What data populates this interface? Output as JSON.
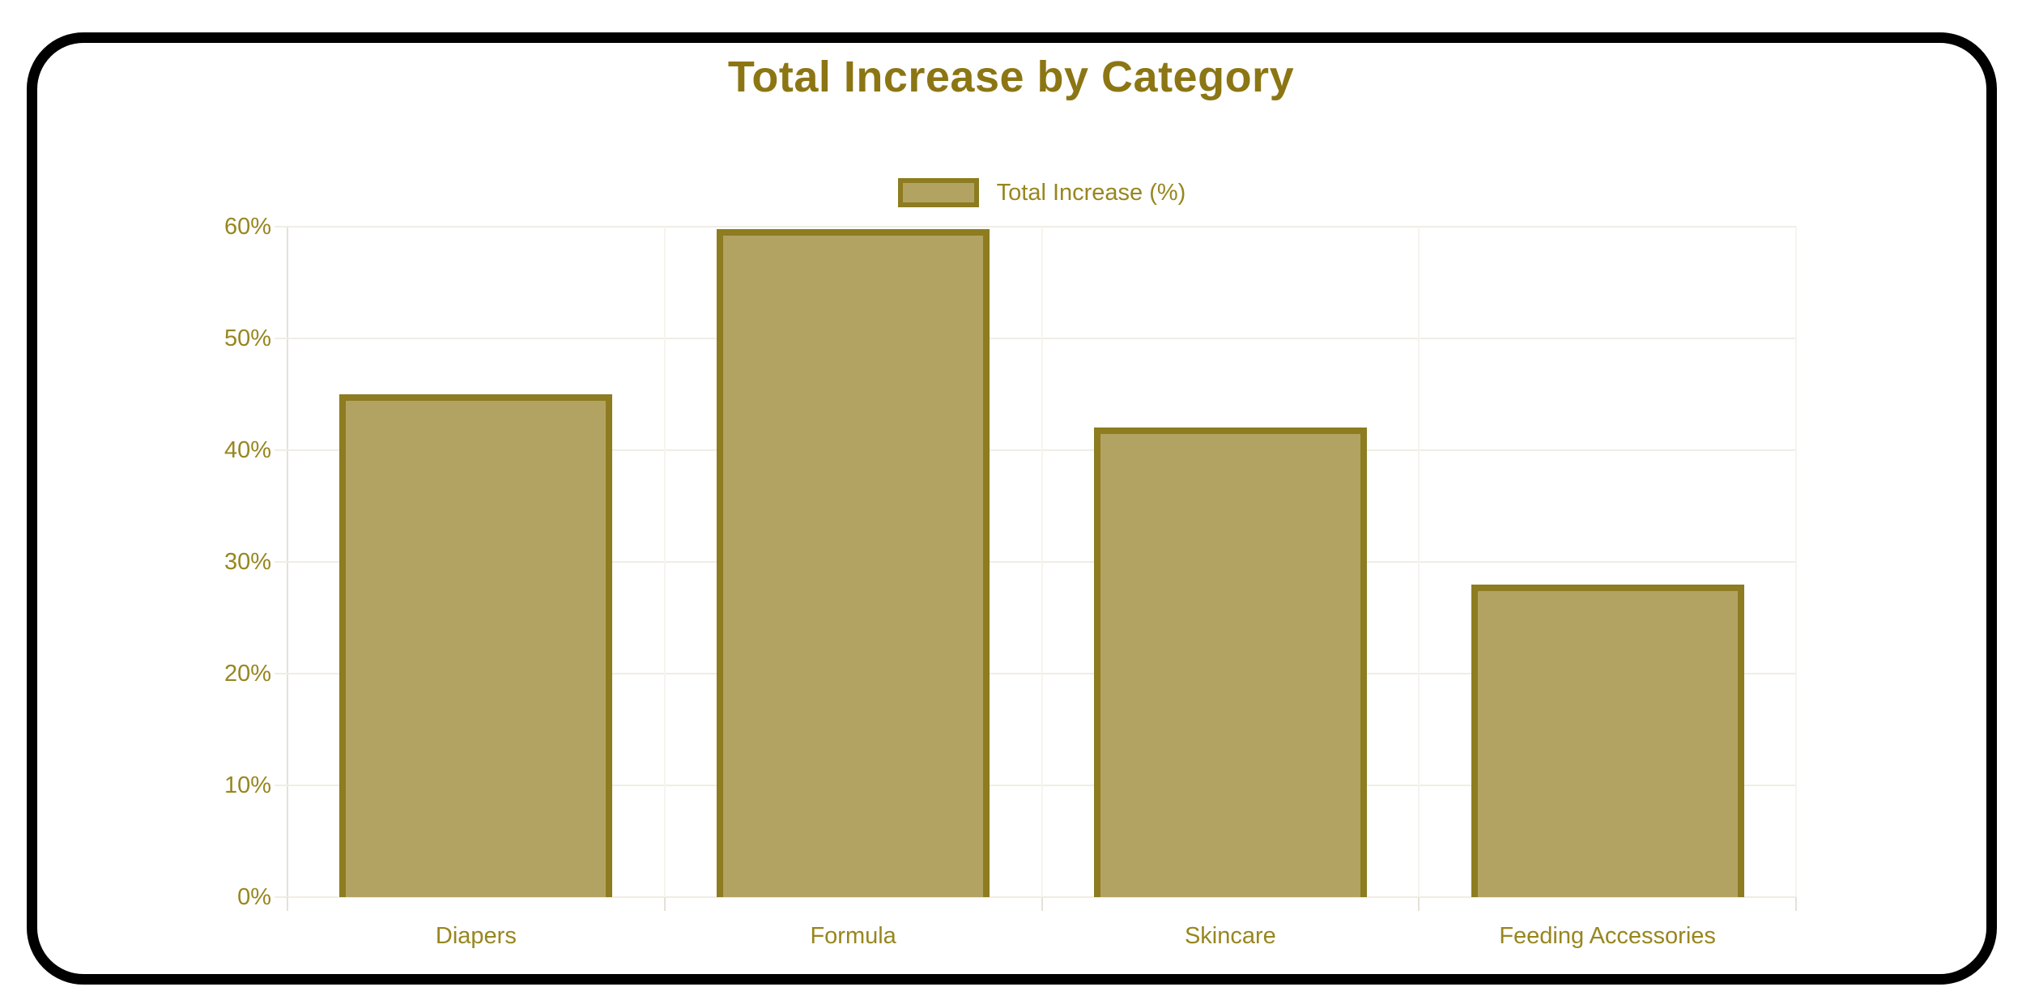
{
  "window": {
    "frame_color": "#000000",
    "background_color": "#ffffff"
  },
  "chart_data": {
    "type": "bar",
    "title": "Total Increase by Category",
    "categories": [
      "Diapers",
      "Formula",
      "Skincare",
      "Feeding Accessories"
    ],
    "series": [
      {
        "name": "Total Increase (%)",
        "values": [
          45,
          59.8,
          42,
          28
        ]
      }
    ],
    "xlabel": "",
    "ylabel": "",
    "ylim": [
      0,
      60
    ],
    "ytick_step": 10,
    "ytick_labels": [
      "0%",
      "10%",
      "20%",
      "30%",
      "40%",
      "50%",
      "60%"
    ],
    "grid": true,
    "legend_position": "top-center",
    "colors": {
      "bar_fill": "#b3a363",
      "bar_border": "#8d7c20",
      "title_text": "#8c7614",
      "tick_text": "#98861f",
      "grid_horizontal": "#f0ede3",
      "grid_vertical": "#f6f4ee",
      "axis_line": "#e4e1d8"
    }
  }
}
